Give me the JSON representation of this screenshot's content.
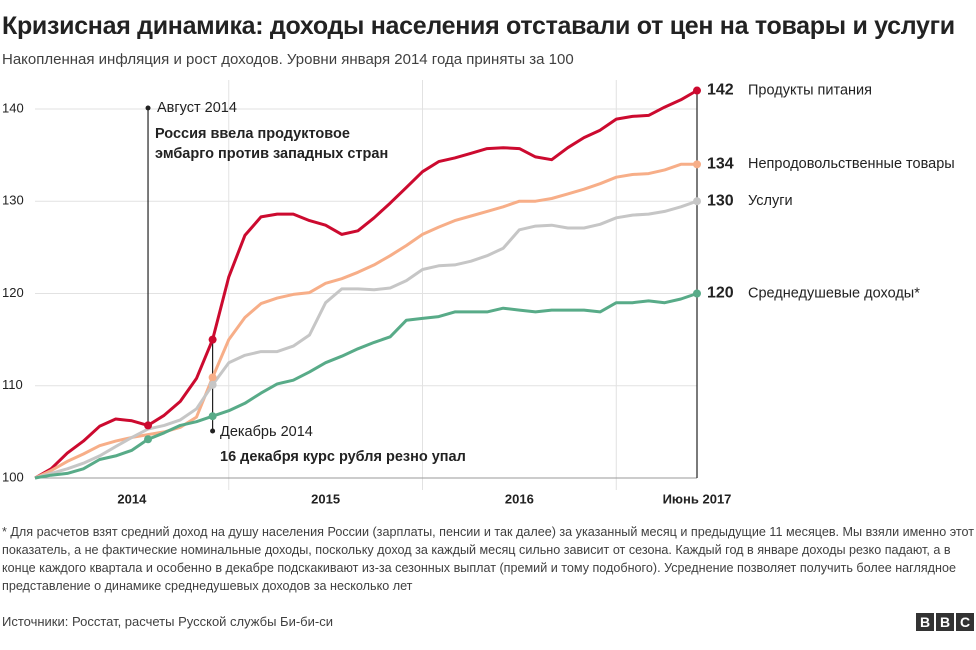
{
  "chart_data": {
    "type": "line",
    "title": "Кризисная динамика: доходы населения отставали от цен на товары и услуги",
    "subtitle": "Накопленная инфляция и рост доходов. Уровни января 2014 года приняты за 100",
    "categories": [
      null,
      null,
      null,
      null,
      null,
      null,
      "2014",
      null,
      null,
      null,
      null,
      null,
      null,
      null,
      null,
      null,
      null,
      null,
      "2015",
      null,
      null,
      null,
      null,
      null,
      null,
      null,
      null,
      null,
      null,
      null,
      "2016",
      null,
      null,
      null,
      null,
      null,
      null,
      null,
      null,
      null,
      null,
      "Июнь 2017"
    ],
    "series": [
      {
        "name": "Продукты питания",
        "color": "#cc0a2f",
        "values": [
          100,
          101,
          102.7,
          104,
          105.6,
          106.4,
          106.2,
          105.7,
          106.8,
          108.3,
          110.8,
          115,
          121.8,
          126.3,
          128.3,
          128.6,
          128.6,
          127.9,
          127.4,
          126.4,
          126.8,
          128.2,
          129.8,
          131.5,
          133.2,
          134.3,
          134.7,
          135.2,
          135.7,
          135.8,
          135.7,
          134.8,
          134.5,
          135.8,
          136.9,
          137.7,
          138.9,
          139.2,
          139.3,
          140.2,
          141,
          142
        ]
      },
      {
        "name": "Непродовольственные товары",
        "color": "#f7ae88",
        "values": [
          100,
          100.8,
          101.8,
          102.6,
          103.5,
          104,
          104.4,
          104.7,
          105,
          105.5,
          106.6,
          110.9,
          115,
          117.4,
          118.9,
          119.5,
          119.9,
          120.1,
          121.1,
          121.6,
          122.3,
          123.1,
          124.1,
          125.2,
          126.4,
          127.2,
          127.9,
          128.4,
          128.9,
          129.4,
          130,
          130,
          130.3,
          130.8,
          131.3,
          131.9,
          132.6,
          132.9,
          133,
          133.4,
          134,
          134
        ]
      },
      {
        "name": "Услуги",
        "color": "#c6c6c6",
        "values": [
          100,
          100.5,
          101,
          101.6,
          102.4,
          103.4,
          104.4,
          105.3,
          105.7,
          106.3,
          107.5,
          110.1,
          112.5,
          113.3,
          113.7,
          113.7,
          114.3,
          115.5,
          119,
          120.5,
          120.5,
          120.4,
          120.6,
          121.4,
          122.6,
          123,
          123.1,
          123.5,
          124.1,
          124.9,
          126.9,
          127.3,
          127.4,
          127.1,
          127.1,
          127.5,
          128.2,
          128.5,
          128.6,
          128.9,
          129.4,
          130
        ]
      },
      {
        "name": "Среднедушевые доходы*",
        "color": "#58ab88",
        "values": [
          100,
          100.3,
          100.5,
          101,
          102,
          102.4,
          103,
          104.2,
          104.9,
          105.7,
          106.1,
          106.7,
          107.3,
          108.1,
          109.2,
          110.2,
          110.6,
          111.5,
          112.5,
          113.2,
          114,
          114.7,
          115.3,
          117.1,
          117.3,
          117.5,
          118,
          118,
          118,
          118.4,
          118.2,
          118,
          118.2,
          118.2,
          118.2,
          118,
          119,
          119,
          119.2,
          119,
          119.4,
          120
        ]
      }
    ],
    "ylim": [
      100,
      143
    ],
    "yticks": [
      100,
      110,
      120,
      130,
      140
    ],
    "grid": true,
    "annotations": [
      {
        "label": "Август 2014",
        "text": [
          "Россия ввела продуктовое",
          "эмбарго против западных стран"
        ]
      },
      {
        "label": "Декабрь 2014",
        "text": [
          "16 декабря курс рубля резно упал"
        ]
      }
    ],
    "footnote": "* Для расчетов взят средний доход на душу населения России (зарплаты, пенсии и так далее) за указанный месяц и предыдущие 11 месяцев. Мы взяли именно этот показатель, а не фактические номинальные доходы, поскольку доход за каждый месяц сильно зависит от сезона. Каждый год в январе доходы резко падают, а в конце каждого квартала и особенно в декабре подскакивают из-за сезонных выплат (премий и тому подобного). Усреднение позволяет получить более наглядное представление о динамике среднедушевых доходов за несколько лет",
    "source": "Источники: Росстат, расчеты Русской службы Би-би-си",
    "logo": [
      "B",
      "B",
      "C"
    ]
  }
}
